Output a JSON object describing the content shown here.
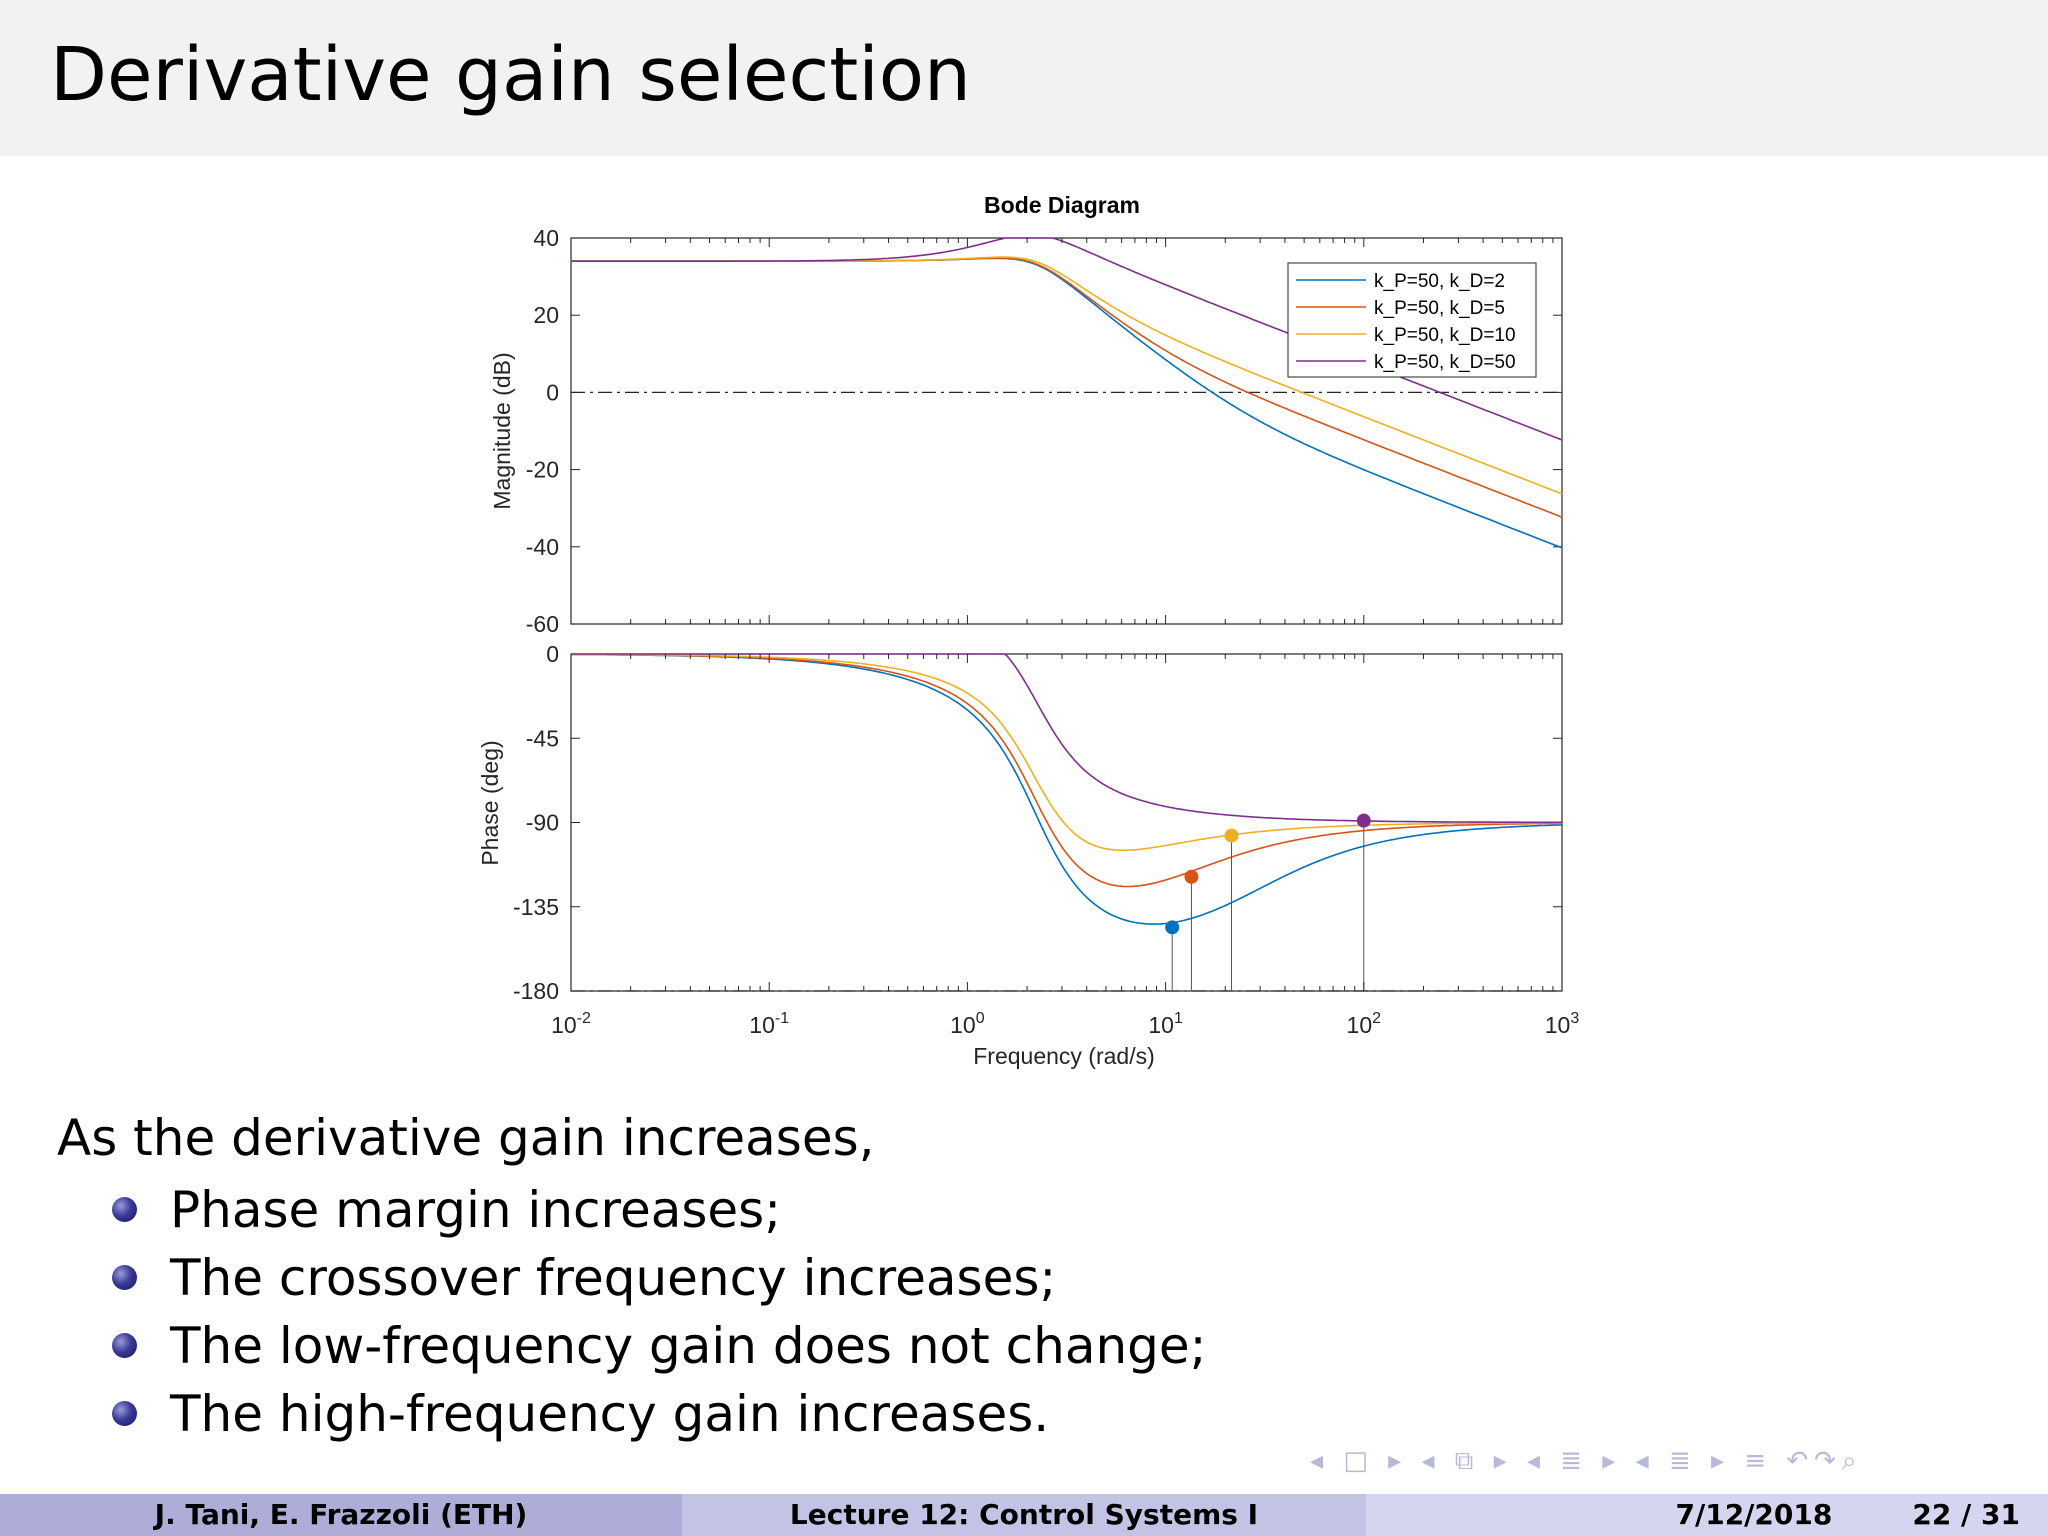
{
  "slide": {
    "title": "Derivative gain selection",
    "lead": "As the derivative gain increases,",
    "bullets": [
      "Phase margin increases;",
      "The crossover frequency increases;",
      "The low-frequency gain does not change;",
      "The high-frequency gain increases."
    ]
  },
  "footer": {
    "authors": "J. Tani, E. Frazzoli  (ETH)",
    "lecture": "Lecture 12: Control Systems I",
    "date": "7/12/2018",
    "page": "22 / 31"
  },
  "nav_icons": [
    "nav-frame-icon",
    "nav-subsection-icon",
    "nav-section-icon",
    "nav-document-icon",
    "nav-search-icon"
  ],
  "chart_data": {
    "type": "line",
    "title": "Bode Diagram",
    "xlabel": "Frequency  (rad/s)",
    "x_scale": "log",
    "xlim": [
      0.01,
      1000
    ],
    "x_ticks": [
      {
        "value": 0.01,
        "base": "10",
        "exp": "-2"
      },
      {
        "value": 0.1,
        "base": "10",
        "exp": "-1"
      },
      {
        "value": 1,
        "base": "10",
        "exp": "0"
      },
      {
        "value": 10,
        "base": "10",
        "exp": "1"
      },
      {
        "value": 100,
        "base": "10",
        "exp": "2"
      },
      {
        "value": 1000,
        "base": "10",
        "exp": "3"
      }
    ],
    "legend_position": "top-right",
    "magnitude": {
      "ylabel": "Magnitude (dB)",
      "ylim": [
        -60,
        40
      ],
      "yticks": [
        40,
        20,
        0,
        -20,
        -40,
        -60
      ],
      "reference_line": 0
    },
    "phase": {
      "ylabel": "Phase (deg)",
      "ylim": [
        -180,
        0
      ],
      "yticks": [
        0,
        -45,
        -90,
        -135,
        -180
      ],
      "reference_line": -180
    },
    "series": [
      {
        "name": "k_P=50, k_D=2",
        "color": "#0072bd",
        "kD": 2,
        "margin_marker": {
          "frequency": 10.8,
          "phase": -146
        }
      },
      {
        "name": "k_P=50, k_D=5",
        "color": "#d95319",
        "kD": 5,
        "margin_marker": {
          "frequency": 13.5,
          "phase": -119
        }
      },
      {
        "name": "k_P=50, k_D=10",
        "color": "#edb120",
        "kD": 10,
        "margin_marker": {
          "frequency": 21.5,
          "phase": -97
        }
      },
      {
        "name": "k_P=50, k_D=50",
        "color": "#7e2f8e",
        "kD": 50,
        "margin_marker": {
          "frequency": 100,
          "phase": -89
        }
      }
    ]
  }
}
